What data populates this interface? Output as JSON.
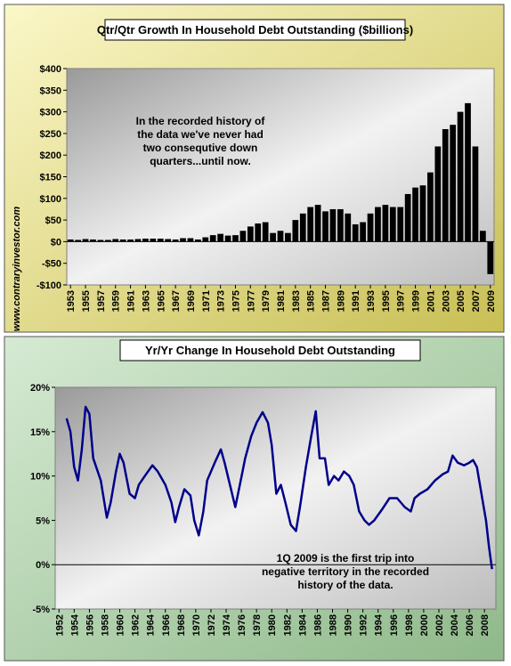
{
  "watermark": "www.contraryinvestor.com",
  "chart_data": [
    {
      "type": "bar",
      "title": "Qtr/Qtr Growth In Household Debt Outstanding ($billions)",
      "color": "#000000",
      "x": [
        1953,
        1954,
        1955,
        1956,
        1957,
        1958,
        1959,
        1960,
        1961,
        1962,
        1963,
        1964,
        1965,
        1966,
        1967,
        1968,
        1969,
        1970,
        1971,
        1972,
        1973,
        1974,
        1975,
        1976,
        1977,
        1978,
        1979,
        1980,
        1981,
        1982,
        1983,
        1984,
        1985,
        1986,
        1987,
        1988,
        1989,
        1990,
        1991,
        1992,
        1993,
        1994,
        1995,
        1996,
        1997,
        1998,
        1999,
        2000,
        2001,
        2002,
        2003,
        2004,
        2005,
        2006,
        2007,
        2008,
        2009
      ],
      "values": [
        5,
        4,
        6,
        5,
        4,
        4,
        6,
        5,
        5,
        6,
        7,
        7,
        7,
        6,
        5,
        8,
        8,
        5,
        10,
        15,
        18,
        14,
        15,
        25,
        35,
        42,
        45,
        20,
        25,
        20,
        50,
        65,
        80,
        85,
        70,
        75,
        75,
        65,
        40,
        45,
        65,
        80,
        85,
        80,
        80,
        110,
        125,
        130,
        160,
        220,
        260,
        270,
        300,
        320,
        220,
        25,
        -75
      ],
      "xlim": [
        1952.5,
        2009.5
      ],
      "xticks": [
        1953,
        1955,
        1957,
        1959,
        1961,
        1963,
        1965,
        1967,
        1969,
        1971,
        1973,
        1975,
        1977,
        1979,
        1981,
        1983,
        1985,
        1987,
        1989,
        1991,
        1993,
        1995,
        1997,
        1999,
        2001,
        2003,
        2005,
        2007,
        2009
      ],
      "ylim": [
        -100,
        400
      ],
      "yticks": [
        {
          "value": -100,
          "label": "-$100"
        },
        {
          "value": -50,
          "label": "-$50"
        },
        {
          "value": 0,
          "label": "$0"
        },
        {
          "value": 50,
          "label": "$50"
        },
        {
          "value": 100,
          "label": "$100"
        },
        {
          "value": 150,
          "label": "$150"
        },
        {
          "value": 200,
          "label": "$200"
        },
        {
          "value": 250,
          "label": "$250"
        },
        {
          "value": 300,
          "label": "$300"
        },
        {
          "value": 350,
          "label": "$350"
        },
        {
          "value": 400,
          "label": "$400"
        }
      ],
      "annotation": [
        "In the recorded history of",
        "the data we've never had",
        "two consequtive down",
        "quarters...until now."
      ]
    },
    {
      "type": "line",
      "title": "Yr/Yr Change In Household Debt Outstanding",
      "color": "#00008b",
      "x": [
        1953,
        1953.5,
        1954,
        1954.5,
        1955,
        1955.5,
        1956,
        1956.5,
        1957.5,
        1958.3,
        1958.8,
        1959.5,
        1960,
        1960.5,
        1961.3,
        1962,
        1962.5,
        1963.3,
        1964.3,
        1965,
        1966,
        1966.8,
        1967.3,
        1967.8,
        1968.5,
        1969.3,
        1969.8,
        1970.4,
        1971,
        1971.5,
        1972.5,
        1973.3,
        1973.8,
        1974.5,
        1975.2,
        1975.8,
        1976.5,
        1977.3,
        1978,
        1978.8,
        1979.5,
        1980,
        1980.6,
        1981.2,
        1981.8,
        1982.5,
        1983.2,
        1983.8,
        1984.5,
        1985.2,
        1985.8,
        1986.3,
        1987,
        1987.5,
        1988.2,
        1988.8,
        1989.5,
        1990.2,
        1990.8,
        1991.5,
        1992.2,
        1992.8,
        1993.5,
        1994.5,
        1995.5,
        1996.5,
        1997.5,
        1998.3,
        1998.8,
        1999.5,
        2000.5,
        2001.5,
        2002.5,
        2003.2,
        2003.8,
        2004.5,
        2005.3,
        2006,
        2006.5,
        2007,
        2007.6,
        2008.2,
        2008.6,
        2009
      ],
      "values": [
        16.5,
        15,
        11,
        9.5,
        13,
        17.8,
        17,
        12,
        9.5,
        5.3,
        7,
        10.5,
        12.5,
        11.5,
        8,
        7.5,
        9,
        10,
        11.2,
        10.5,
        9,
        7,
        4.8,
        6.5,
        8.5,
        7.8,
        5,
        3.3,
        6,
        9.5,
        11.5,
        13,
        11.5,
        9,
        6.5,
        9,
        12,
        14.5,
        16,
        17.2,
        16,
        13.5,
        8,
        9,
        7,
        4.5,
        3.8,
        7,
        11,
        14.5,
        17.3,
        12,
        12,
        9,
        10,
        9.5,
        10.5,
        10,
        9,
        6,
        5,
        4.5,
        5,
        6.2,
        7.5,
        7.5,
        6.5,
        6,
        7.5,
        8,
        8.5,
        9.5,
        10.2,
        10.5,
        12.3,
        11.5,
        11.2,
        11.5,
        11.8,
        11,
        8,
        5,
        2,
        -0.5
      ],
      "xlim": [
        1951.5,
        2009.5
      ],
      "xticks": [
        1952,
        1954,
        1956,
        1958,
        1960,
        1962,
        1964,
        1966,
        1968,
        1970,
        1972,
        1974,
        1976,
        1978,
        1980,
        1982,
        1984,
        1986,
        1988,
        1990,
        1992,
        1994,
        1996,
        1998,
        2000,
        2002,
        2004,
        2006,
        2008
      ],
      "ylim": [
        -5,
        20
      ],
      "yticks": [
        {
          "value": -5,
          "label": "-5%"
        },
        {
          "value": 0,
          "label": "0%"
        },
        {
          "value": 5,
          "label": "5%"
        },
        {
          "value": 10,
          "label": "10%"
        },
        {
          "value": 15,
          "label": "15%"
        },
        {
          "value": 20,
          "label": "20%"
        }
      ],
      "annotation": [
        "1Q 2009 is the first trip into",
        "negative territory in the recorded",
        "history of the data."
      ]
    }
  ]
}
